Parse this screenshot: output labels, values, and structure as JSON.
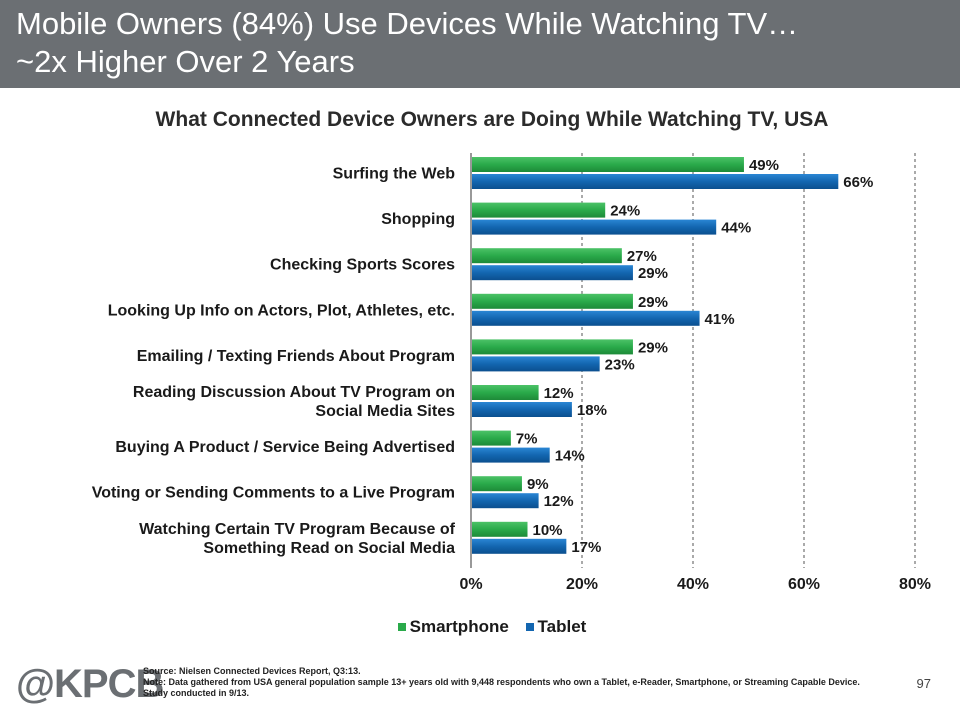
{
  "header": {
    "title_line1": "Mobile Owners (84%) Use Devices While Watching TV…",
    "title_line2": "~2x Higher Over 2 Years",
    "background_color": "#6b6f73"
  },
  "chart_data": {
    "type": "bar",
    "orientation": "horizontal",
    "title": "What Connected Device Owners are Doing While Watching TV, USA",
    "categories": [
      "Surfing the Web",
      "Shopping",
      "Checking Sports Scores",
      "Looking Up Info on Actors, Plot, Athletes, etc.",
      "Emailing / Texting Friends About Program",
      "Reading Discussion About TV Program on\nSocial Media Sites",
      "Buying A Product / Service Being Advertised",
      "Voting or Sending Comments to a Live Program",
      "Watching Certain TV Program Because of\nSomething Read on Social Media"
    ],
    "series": [
      {
        "name": "Smartphone",
        "color": "#2aaa4a",
        "values": [
          49,
          24,
          27,
          29,
          29,
          12,
          7,
          9,
          10
        ],
        "labels": [
          "49%",
          "24%",
          "27%",
          "29%",
          "29%",
          "12%",
          "7%",
          "9%",
          "10%"
        ]
      },
      {
        "name": "Tablet",
        "color": "#1366b0",
        "values": [
          66,
          44,
          29,
          41,
          23,
          18,
          14,
          12,
          17
        ],
        "labels": [
          "66%",
          "44%",
          "29%",
          "41%",
          "23%",
          "18%",
          "14%",
          "12%",
          "17%"
        ]
      }
    ],
    "x_ticks": [
      "0%",
      "20%",
      "40%",
      "60%",
      "80%"
    ],
    "xlim": [
      0,
      80
    ],
    "grid": "vertical dashed",
    "legend_position": "bottom-center"
  },
  "footer": {
    "logo": "@KPCB",
    "source": "Source: Nielsen Connected Devices Report, Q3:13.",
    "note": "Note: Data gathered from USA general population sample 13+ years old with 9,448 respondents who own a Tablet, e-Reader, Smartphone, or Streaming Capable Device. Study conducted in 9/13.",
    "page_number": "97"
  }
}
